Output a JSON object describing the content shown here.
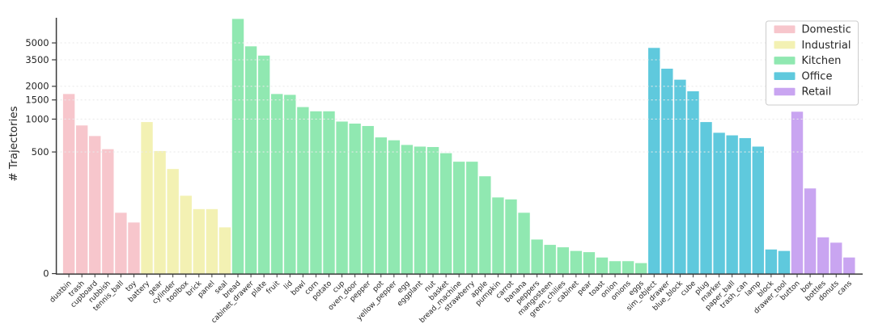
{
  "chart_data": {
    "type": "bar",
    "title": "",
    "xlabel": "",
    "ylabel": "# Trajectories",
    "y_ticks": [
      0,
      500,
      1000,
      1500,
      2000,
      3500,
      5000
    ],
    "y_tick_labels": [
      "0",
      "500",
      "1000",
      "1500",
      "2000",
      "3500",
      "5000"
    ],
    "scale": "symlog (linear 0-500, logarithmic above 500)",
    "grid": "horizontal dashed lines at each y tick",
    "legend_position": "upper right",
    "legend_title": "",
    "groups": [
      {
        "name": "Domestic",
        "color": "#f7c6cc"
      },
      {
        "name": "Industrial",
        "color": "#f3f1b3"
      },
      {
        "name": "Kitchen",
        "color": "#90e8b1"
      },
      {
        "name": "Office",
        "color": "#5fc9dd"
      },
      {
        "name": "Retail",
        "color": "#c9a5f1"
      }
    ],
    "bars": [
      {
        "label": "dustbin",
        "group": "Domestic",
        "value": 1700
      },
      {
        "label": "trash",
        "group": "Domestic",
        "value": 875
      },
      {
        "label": "cupboard",
        "group": "Domestic",
        "value": 700
      },
      {
        "label": "rubbish",
        "group": "Domestic",
        "value": 530
      },
      {
        "label": "tennis_ball",
        "group": "Domestic",
        "value": 250
      },
      {
        "label": "toy",
        "group": "Domestic",
        "value": 210
      },
      {
        "label": "battery",
        "group": "Industrial",
        "value": 940
      },
      {
        "label": "gear",
        "group": "Industrial",
        "value": 510
      },
      {
        "label": "cylinder",
        "group": "Industrial",
        "value": 430
      },
      {
        "label": "toolbox",
        "group": "Industrial",
        "value": 320
      },
      {
        "label": "brick",
        "group": "Industrial",
        "value": 265
      },
      {
        "label": "panel",
        "group": "Industrial",
        "value": 265
      },
      {
        "label": "seal",
        "group": "Industrial",
        "value": 190
      },
      {
        "label": "bread",
        "group": "Kitchen",
        "value": 8300
      },
      {
        "label": "cabinet_drawer",
        "group": "Kitchen",
        "value": 4650
      },
      {
        "label": "plate",
        "group": "Kitchen",
        "value": 3825
      },
      {
        "label": "fruit",
        "group": "Kitchen",
        "value": 1700
      },
      {
        "label": "lid",
        "group": "Kitchen",
        "value": 1670
      },
      {
        "label": "bowl",
        "group": "Kitchen",
        "value": 1290
      },
      {
        "label": "corn",
        "group": "Kitchen",
        "value": 1180
      },
      {
        "label": "potato",
        "group": "Kitchen",
        "value": 1180
      },
      {
        "label": "cup",
        "group": "Kitchen",
        "value": 950
      },
      {
        "label": "oven_door",
        "group": "Kitchen",
        "value": 910
      },
      {
        "label": "pepper",
        "group": "Kitchen",
        "value": 865
      },
      {
        "label": "pot",
        "group": "Kitchen",
        "value": 680
      },
      {
        "label": "yellow_pepper",
        "group": "Kitchen",
        "value": 640
      },
      {
        "label": "egg",
        "group": "Kitchen",
        "value": 580
      },
      {
        "label": "eggplant",
        "group": "Kitchen",
        "value": 560
      },
      {
        "label": "nut",
        "group": "Kitchen",
        "value": 555
      },
      {
        "label": "basket",
        "group": "Kitchen",
        "value": 495
      },
      {
        "label": "bread_machine",
        "group": "Kitchen",
        "value": 460
      },
      {
        "label": "strawberry",
        "group": "Kitchen",
        "value": 460
      },
      {
        "label": "apple",
        "group": "Kitchen",
        "value": 400
      },
      {
        "label": "pumpkin",
        "group": "Kitchen",
        "value": 313
      },
      {
        "label": "carrot",
        "group": "Kitchen",
        "value": 305
      },
      {
        "label": "banana",
        "group": "Kitchen",
        "value": 250
      },
      {
        "label": "peppers",
        "group": "Kitchen",
        "value": 140
      },
      {
        "label": "mangosteen",
        "group": "Kitchen",
        "value": 118
      },
      {
        "label": "green_chilies",
        "group": "Kitchen",
        "value": 108
      },
      {
        "label": "cabinet",
        "group": "Kitchen",
        "value": 93
      },
      {
        "label": "pear",
        "group": "Kitchen",
        "value": 88
      },
      {
        "label": "toast",
        "group": "Kitchen",
        "value": 66
      },
      {
        "label": "onion",
        "group": "Kitchen",
        "value": 51
      },
      {
        "label": "onions",
        "group": "Kitchen",
        "value": 51
      },
      {
        "label": "eggs",
        "group": "Kitchen",
        "value": 43
      },
      {
        "label": "sim_object",
        "group": "Office",
        "value": 4500
      },
      {
        "label": "drawer",
        "group": "Office",
        "value": 2900
      },
      {
        "label": "blue_block",
        "group": "Office",
        "value": 2300
      },
      {
        "label": "cube",
        "group": "Office",
        "value": 1800
      },
      {
        "label": "plug",
        "group": "Office",
        "value": 940
      },
      {
        "label": "marker",
        "group": "Office",
        "value": 750
      },
      {
        "label": "paper_ball",
        "group": "Office",
        "value": 710
      },
      {
        "label": "trash_can",
        "group": "Office",
        "value": 670
      },
      {
        "label": "lamp",
        "group": "Office",
        "value": 560
      },
      {
        "label": "block",
        "group": "Office",
        "value": 99
      },
      {
        "label": "drawer_tool",
        "group": "Office",
        "value": 93
      },
      {
        "label": "button",
        "group": "Retail",
        "value": 1170
      },
      {
        "label": "box",
        "group": "Retail",
        "value": 350
      },
      {
        "label": "bottles",
        "group": "Retail",
        "value": 149
      },
      {
        "label": "donuts",
        "group": "Retail",
        "value": 127
      },
      {
        "label": "cans",
        "group": "Retail",
        "value": 66
      }
    ],
    "colors": {
      "axis": "#3a3a3a",
      "tick_label": "#262626",
      "grid": "#e9e9e9",
      "legend_border": "#cccccc",
      "background": "#ffffff"
    }
  }
}
